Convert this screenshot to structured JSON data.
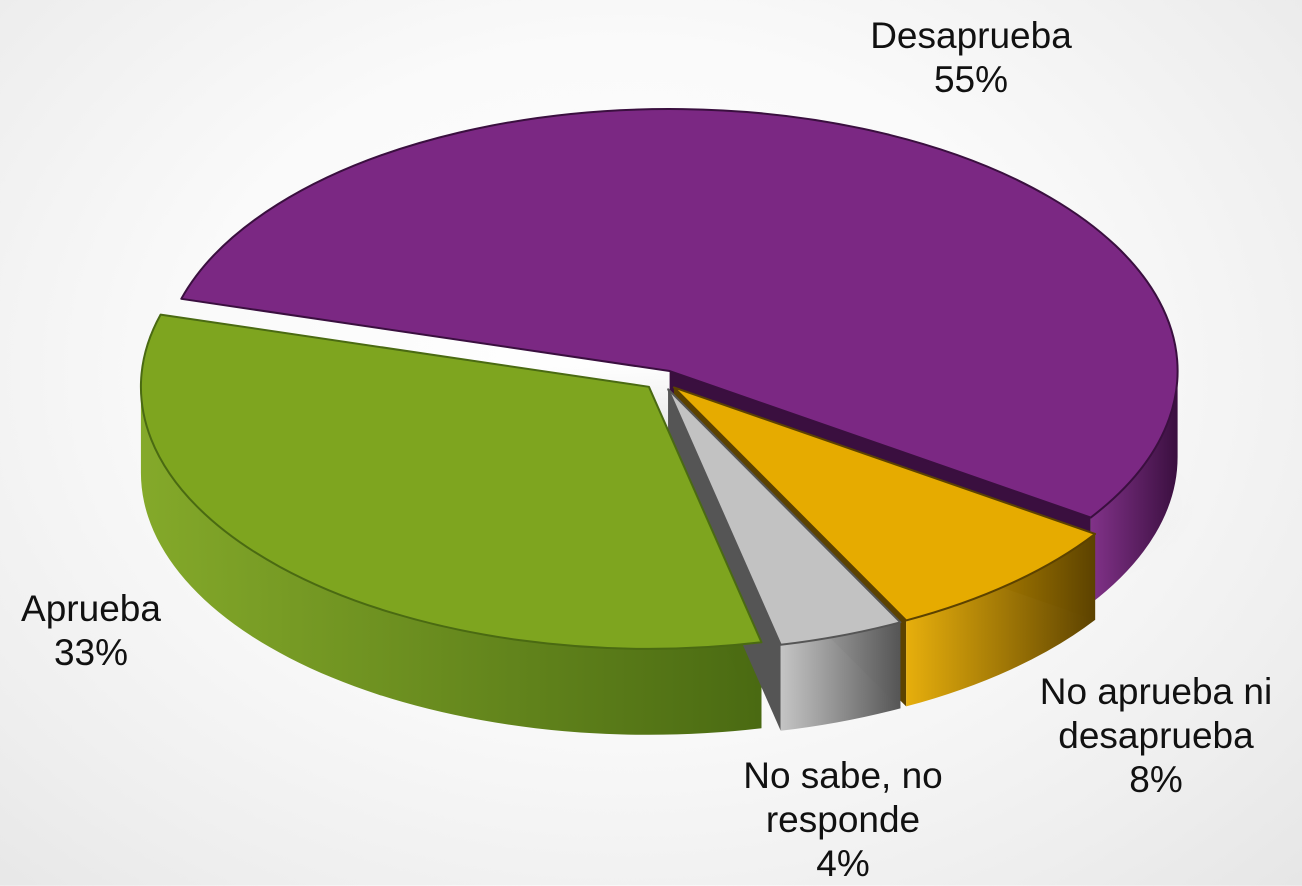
{
  "chart_data": {
    "type": "pie",
    "title": "",
    "slices": [
      {
        "name": "Desaprueba",
        "value": 55,
        "value_label": "55%",
        "label_lines": [
          "Desaprueba"
        ],
        "color": "#7b2883",
        "side_color": "#3a0f3f"
      },
      {
        "name": "No aprueba ni desaprueba",
        "value": 8,
        "value_label": "8%",
        "label_lines": [
          "No aprueba ni",
          "desaprueba"
        ],
        "color": "#e6ab00",
        "side_color": "#5c4200"
      },
      {
        "name": "No sabe, no responde",
        "value": 4,
        "value_label": "4%",
        "label_lines": [
          "No sabe, no",
          "responde"
        ],
        "color": "#c2c2c2",
        "side_color": "#555555"
      },
      {
        "name": "Aprueba",
        "value": 33,
        "value_label": "33%",
        "label_lines": [
          "Aprueba"
        ],
        "color": "#7ea51f",
        "side_color": "#4a6a12"
      }
    ],
    "legend": "none",
    "style": "3d-exploded-pie"
  }
}
